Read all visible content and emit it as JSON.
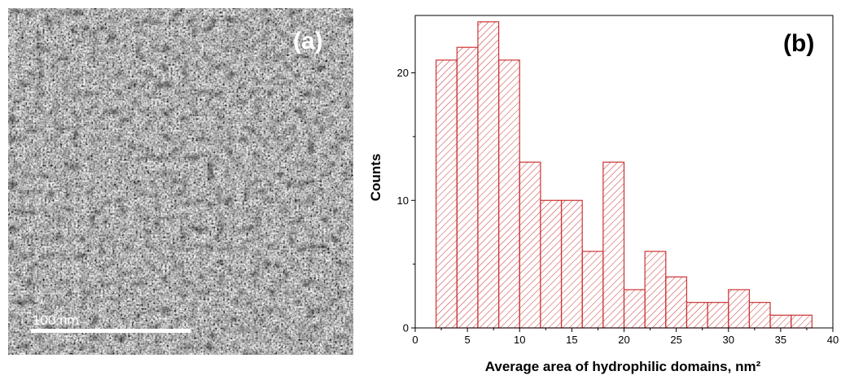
{
  "panel_a": {
    "label": "(a)",
    "scale_bar_label": "100 nm"
  },
  "panel_b": {
    "label": "(b)"
  },
  "chart_data": {
    "type": "bar",
    "title": "",
    "xlabel": "Average area of hydrophilic domains, nm²",
    "ylabel": "Counts",
    "bin_edges": [
      2,
      4,
      6,
      8,
      10,
      12,
      14,
      16,
      18,
      20,
      22,
      24,
      26,
      28,
      30,
      32,
      34,
      36,
      38
    ],
    "values": [
      21,
      22,
      24,
      21,
      13,
      10,
      10,
      6,
      13,
      3,
      6,
      4,
      2,
      2,
      3,
      2,
      1,
      1
    ],
    "xlim": [
      0,
      40
    ],
    "ylim": [
      0,
      24.5
    ],
    "x_ticks": [
      "0",
      "5",
      "10",
      "15",
      "20",
      "25",
      "30",
      "35",
      "40"
    ],
    "y_ticks": [
      "0",
      "10",
      "20"
    ],
    "bar_color": "#cc3333",
    "fill_pattern": "diagonal-hatch",
    "grid": false,
    "legend": "none"
  }
}
